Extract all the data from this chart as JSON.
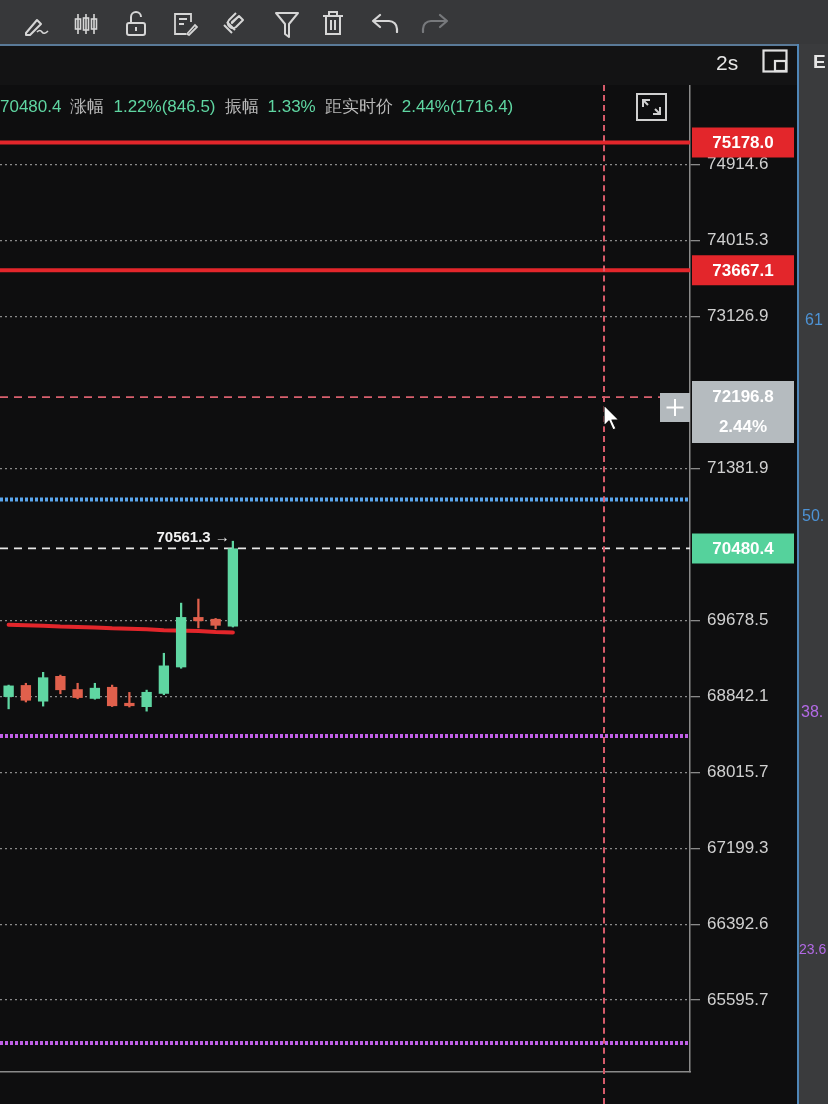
{
  "chart_data": {
    "type": "candlestick",
    "subtitle": "70480.4 涨幅 1.22%(846.5) 振幅 1.33% 距实时价 2.44%(1716.4)",
    "categories": [
      null,
      null,
      null,
      null,
      null,
      null,
      null,
      null,
      null,
      null,
      null,
      null,
      null,
      null,
      null,
      null,
      null,
      null,
      null,
      null,
      null,
      null,
      null,
      null,
      null,
      null,
      null,
      null,
      null,
      null,
      null,
      null,
      null,
      null,
      null,
      null,
      null,
      null,
      null,
      null
    ],
    "ohlc": [
      [
        68835,
        68965,
        68705,
        68960
      ],
      [
        68965,
        68985,
        68780,
        68795
      ],
      [
        68785,
        69105,
        68735,
        69050
      ],
      [
        69065,
        69075,
        68870,
        68910
      ],
      [
        68920,
        68985,
        68815,
        68825
      ],
      [
        68815,
        68985,
        68810,
        68935
      ],
      [
        68945,
        68965,
        68730,
        68735
      ],
      [
        68770,
        68885,
        68725,
        68735
      ],
      [
        68725,
        68910,
        68680,
        68890
      ],
      [
        68870,
        69315,
        68860,
        69180
      ],
      [
        69160,
        69870,
        69150,
        69715
      ],
      [
        69715,
        69915,
        69595,
        69670
      ],
      [
        69695,
        69700,
        69585,
        69620
      ],
      [
        69610,
        70561.3,
        69605,
        70480.4
      ],
      null,
      null,
      null,
      null,
      null,
      null,
      null,
      null,
      null,
      null,
      null,
      null,
      null,
      null,
      null,
      null,
      null,
      null,
      null,
      null,
      null,
      null,
      null,
      null,
      null,
      null
    ],
    "colors": [
      "#5fd6a2",
      "#e0604c",
      "#5fd6a2",
      "#e0604c",
      "#e0604c",
      "#5fd6a2",
      "#e0604c",
      "#e0604c",
      "#5fd6a2",
      "#5fd6a2",
      "#5fd6a2",
      "#e0604c",
      "#e0604c",
      "#5fd6a2",
      null,
      null,
      null,
      null,
      null,
      null,
      null,
      null,
      null,
      null,
      null,
      null,
      null,
      null,
      null,
      null,
      null,
      null,
      null,
      null,
      null,
      null,
      null,
      null,
      null,
      null
    ],
    "series": [
      {
        "type": "line",
        "color": "#e3262b",
        "values": [
          69630,
          69625,
          69620,
          69610,
          69605,
          69600,
          69590,
          69585,
          69580,
          69570,
          null,
          69560,
          69550,
          69545,
          null,
          null,
          null,
          null,
          null,
          null,
          null,
          null,
          null,
          null,
          null,
          null,
          null,
          null,
          null,
          null,
          null,
          null,
          null,
          null,
          null,
          null,
          null,
          null,
          null,
          null
        ]
      }
    ],
    "log": true,
    "ylim": [
      64850,
      75870
    ],
    "yticks": [
      74914.6,
      74015.3,
      73126.9,
      71381.9,
      69678.5,
      68842.1,
      68015.7,
      67199.3,
      66392.6,
      65595.7
    ],
    "grid": "y",
    "tick_labels": "y",
    "ref_lines": [
      {
        "axis": "y",
        "value": 75178.0,
        "label": "75178.0",
        "color": "#e3262b"
      },
      {
        "axis": "y",
        "value": 73667.1,
        "label": "73667.1",
        "color": "#e3262b"
      },
      {
        "axis": "y",
        "value": 72196.8,
        "label": "72196.8\n2.44%",
        "color": "#d9606e",
        "line_style": "dashed"
      },
      {
        "axis": "y",
        "value": 71030,
        "color": "#5aa6ee",
        "line_style": "dotted"
      },
      {
        "axis": "y",
        "value": 70480.4,
        "label": "70480.4",
        "color": "#e6e6e6",
        "line_style": "dashed"
      },
      {
        "axis": "y",
        "value": 68410,
        "color": "#c060e6",
        "line_style": "dotted"
      },
      {
        "axis": "y",
        "value": 65150,
        "color": "#c060e6",
        "line_style": "dotted"
      }
    ],
    "annotations": [
      "70561.3 →",
      "2s",
      "E",
      "61",
      "50.",
      "38.",
      "23.6"
    ]
  }
}
